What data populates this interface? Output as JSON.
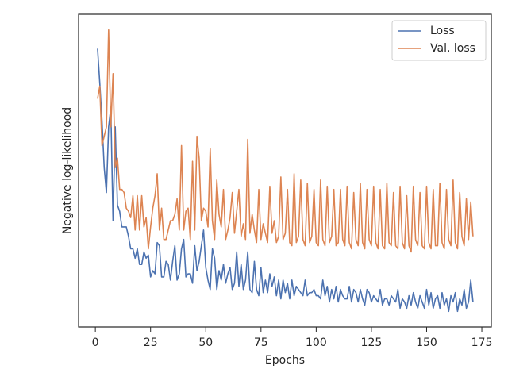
{
  "chart_data": {
    "type": "line",
    "xlabel": "Epochs",
    "ylabel": "Negative log-likelihood",
    "xlim": [
      -7.6,
      179.3
    ],
    "xticks": [
      0,
      25,
      50,
      75,
      100,
      125,
      150,
      175
    ],
    "ylim": [
      0,
      1
    ],
    "yticks": [],
    "legend": "upper right",
    "x": [
      1,
      2,
      3,
      4,
      5,
      6,
      7,
      8,
      9,
      10,
      11,
      12,
      13,
      14,
      15,
      16,
      17,
      18,
      19,
      20,
      21,
      22,
      23,
      24,
      25,
      26,
      27,
      28,
      29,
      30,
      31,
      32,
      33,
      34,
      35,
      36,
      37,
      38,
      39,
      40,
      41,
      42,
      43,
      44,
      45,
      46,
      47,
      48,
      49,
      50,
      51,
      52,
      53,
      54,
      55,
      56,
      57,
      58,
      59,
      60,
      61,
      62,
      63,
      64,
      65,
      66,
      67,
      68,
      69,
      70,
      71,
      72,
      73,
      74,
      75,
      76,
      77,
      78,
      79,
      80,
      81,
      82,
      83,
      84,
      85,
      86,
      87,
      88,
      89,
      90,
      91,
      92,
      93,
      94,
      95,
      96,
      97,
      98,
      99,
      100,
      101,
      102,
      103,
      104,
      105,
      106,
      107,
      108,
      109,
      110,
      111,
      112,
      113,
      114,
      115,
      116,
      117,
      118,
      119,
      120,
      121,
      122,
      123,
      124,
      125,
      126,
      127,
      128,
      129,
      130,
      131,
      132,
      133,
      134,
      135,
      136,
      137,
      138,
      139,
      140,
      141,
      142,
      143,
      144,
      145,
      146,
      147,
      148,
      149,
      150,
      151,
      152,
      153,
      154,
      155,
      156,
      157,
      158,
      159,
      160,
      161,
      162,
      163,
      164,
      165,
      166,
      167,
      168,
      169,
      170,
      171
    ],
    "series": [
      {
        "name": "Loss",
        "color": "#4c72b0",
        "values": [
          0.89,
          0.78,
          0.66,
          0.51,
          0.43,
          0.64,
          0.7,
          0.34,
          0.64,
          0.39,
          0.37,
          0.32,
          0.32,
          0.32,
          0.29,
          0.25,
          0.25,
          0.22,
          0.25,
          0.2,
          0.2,
          0.24,
          0.22,
          0.23,
          0.16,
          0.18,
          0.17,
          0.27,
          0.26,
          0.16,
          0.16,
          0.21,
          0.2,
          0.15,
          0.21,
          0.26,
          0.15,
          0.17,
          0.25,
          0.28,
          0.16,
          0.17,
          0.17,
          0.14,
          0.26,
          0.18,
          0.21,
          0.26,
          0.31,
          0.19,
          0.15,
          0.12,
          0.25,
          0.22,
          0.12,
          0.18,
          0.15,
          0.2,
          0.14,
          0.17,
          0.19,
          0.12,
          0.14,
          0.24,
          0.13,
          0.2,
          0.12,
          0.15,
          0.24,
          0.12,
          0.11,
          0.21,
          0.12,
          0.1,
          0.19,
          0.11,
          0.15,
          0.11,
          0.17,
          0.13,
          0.16,
          0.1,
          0.15,
          0.09,
          0.15,
          0.11,
          0.14,
          0.09,
          0.15,
          0.1,
          0.13,
          0.12,
          0.11,
          0.1,
          0.15,
          0.1,
          0.11,
          0.11,
          0.12,
          0.1,
          0.1,
          0.09,
          0.15,
          0.1,
          0.13,
          0.08,
          0.12,
          0.09,
          0.13,
          0.08,
          0.12,
          0.1,
          0.09,
          0.09,
          0.13,
          0.08,
          0.12,
          0.11,
          0.08,
          0.12,
          0.09,
          0.07,
          0.12,
          0.11,
          0.08,
          0.1,
          0.09,
          0.08,
          0.12,
          0.07,
          0.09,
          0.09,
          0.07,
          0.1,
          0.09,
          0.08,
          0.12,
          0.06,
          0.09,
          0.08,
          0.06,
          0.1,
          0.07,
          0.11,
          0.08,
          0.06,
          0.1,
          0.08,
          0.06,
          0.12,
          0.07,
          0.11,
          0.06,
          0.09,
          0.1,
          0.06,
          0.11,
          0.07,
          0.09,
          0.05,
          0.1,
          0.08,
          0.11,
          0.05,
          0.09,
          0.07,
          0.12,
          0.06,
          0.08,
          0.15,
          0.08
        ]
      },
      {
        "name": "Val. loss",
        "color": "#dd8452",
        "values": [
          0.73,
          0.77,
          0.58,
          0.61,
          0.64,
          0.95,
          0.64,
          0.81,
          0.51,
          0.54,
          0.44,
          0.44,
          0.43,
          0.38,
          0.37,
          0.35,
          0.42,
          0.31,
          0.42,
          0.31,
          0.42,
          0.32,
          0.35,
          0.25,
          0.32,
          0.38,
          0.42,
          0.49,
          0.31,
          0.38,
          0.28,
          0.28,
          0.31,
          0.34,
          0.34,
          0.36,
          0.41,
          0.31,
          0.58,
          0.31,
          0.37,
          0.38,
          0.28,
          0.53,
          0.31,
          0.61,
          0.54,
          0.34,
          0.38,
          0.37,
          0.32,
          0.57,
          0.34,
          0.28,
          0.47,
          0.36,
          0.32,
          0.44,
          0.28,
          0.31,
          0.35,
          0.43,
          0.3,
          0.37,
          0.44,
          0.29,
          0.33,
          0.28,
          0.6,
          0.3,
          0.36,
          0.31,
          0.27,
          0.44,
          0.28,
          0.33,
          0.3,
          0.27,
          0.45,
          0.3,
          0.34,
          0.27,
          0.29,
          0.48,
          0.28,
          0.3,
          0.44,
          0.27,
          0.26,
          0.49,
          0.27,
          0.29,
          0.47,
          0.28,
          0.26,
          0.46,
          0.27,
          0.29,
          0.44,
          0.27,
          0.26,
          0.47,
          0.28,
          0.26,
          0.45,
          0.27,
          0.29,
          0.44,
          0.26,
          0.27,
          0.44,
          0.28,
          0.26,
          0.45,
          0.27,
          0.25,
          0.43,
          0.28,
          0.26,
          0.46,
          0.27,
          0.25,
          0.44,
          0.28,
          0.26,
          0.45,
          0.27,
          0.25,
          0.44,
          0.26,
          0.25,
          0.46,
          0.27,
          0.26,
          0.43,
          0.26,
          0.25,
          0.45,
          0.27,
          0.25,
          0.42,
          0.26,
          0.24,
          0.45,
          0.28,
          0.26,
          0.43,
          0.26,
          0.25,
          0.45,
          0.27,
          0.25,
          0.44,
          0.26,
          0.26,
          0.46,
          0.27,
          0.25,
          0.44,
          0.28,
          0.26,
          0.47,
          0.27,
          0.25,
          0.43,
          0.29,
          0.26,
          0.41,
          0.28,
          0.4,
          0.29
        ]
      }
    ]
  }
}
